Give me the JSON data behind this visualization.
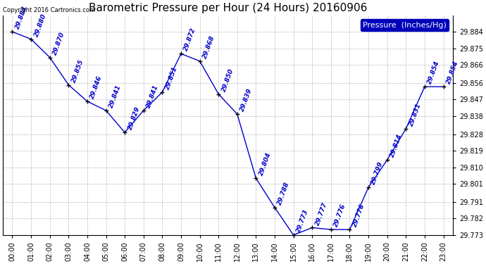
{
  "title": "Barometric Pressure per Hour (24 Hours) 20160906",
  "legend_label": "Pressure  (Inches/Hg)",
  "copyright": "Copyright 2016 Cartronics.com",
  "hours": [
    "00:00",
    "01:00",
    "02:00",
    "03:00",
    "04:00",
    "05:00",
    "06:00",
    "07:00",
    "08:00",
    "09:00",
    "10:00",
    "11:00",
    "12:00",
    "13:00",
    "14:00",
    "15:00",
    "16:00",
    "17:00",
    "18:00",
    "19:00",
    "20:00",
    "21:00",
    "22:00",
    "23:00"
  ],
  "values": [
    29.884,
    29.88,
    29.87,
    29.855,
    29.846,
    29.841,
    29.829,
    29.841,
    29.851,
    29.872,
    29.868,
    29.85,
    29.839,
    29.804,
    29.788,
    29.773,
    29.777,
    29.776,
    29.776,
    29.799,
    29.814,
    29.831,
    29.854,
    29.854
  ],
  "line_color": "#0000cc",
  "marker_color": "#000000",
  "bg_color": "#ffffff",
  "grid_color": "#b0b0b0",
  "text_color": "#0000cc",
  "ylim_min": 29.773,
  "ylim_max": 29.893,
  "yticks": [
    29.773,
    29.782,
    29.791,
    29.801,
    29.81,
    29.819,
    29.828,
    29.838,
    29.847,
    29.856,
    29.866,
    29.875,
    29.884
  ],
  "title_fontsize": 11,
  "annotation_fontsize": 6.5,
  "tick_fontsize": 7,
  "legend_fontsize": 8
}
